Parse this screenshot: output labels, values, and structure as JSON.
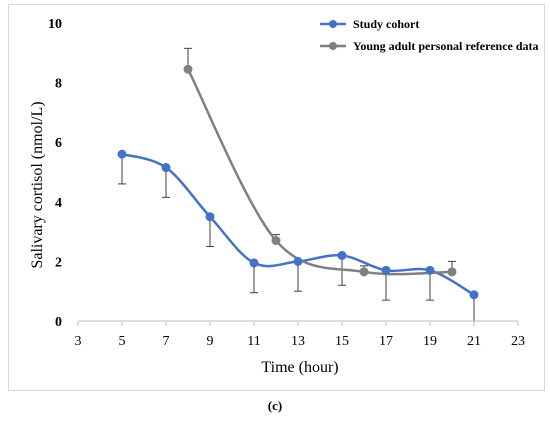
{
  "chart_data": {
    "type": "line",
    "xlabel": "Time (hour)",
    "ylabel": "Salivary cortisol (nmol/L)",
    "xlim": [
      3,
      23
    ],
    "ylim": [
      0,
      10
    ],
    "x_ticks": [
      3,
      5,
      7,
      9,
      11,
      13,
      15,
      17,
      19,
      21,
      23
    ],
    "y_ticks": [
      0,
      2,
      4,
      6,
      8,
      10
    ],
    "grid": false,
    "legend_position": "top-right",
    "smooth": true,
    "series": [
      {
        "name": "Study cohort",
        "color": "#4472c4",
        "x": [
          5,
          7,
          9,
          11,
          13,
          15,
          17,
          19,
          21
        ],
        "values": [
          5.6,
          5.15,
          3.5,
          1.95,
          2.0,
          2.2,
          1.7,
          1.7,
          0.88
        ],
        "error_lower": [
          1.0,
          1.0,
          1.0,
          1.0,
          1.0,
          1.0,
          1.0,
          1.0,
          0.88
        ]
      },
      {
        "name": "Young adult personal reference data",
        "color": "#808080",
        "x": [
          8,
          12,
          16,
          20
        ],
        "values": [
          8.45,
          2.7,
          1.65,
          1.65
        ],
        "error_upper": [
          0.7,
          0.2,
          0.2,
          0.35
        ]
      }
    ]
  },
  "panel_label": "(c)"
}
